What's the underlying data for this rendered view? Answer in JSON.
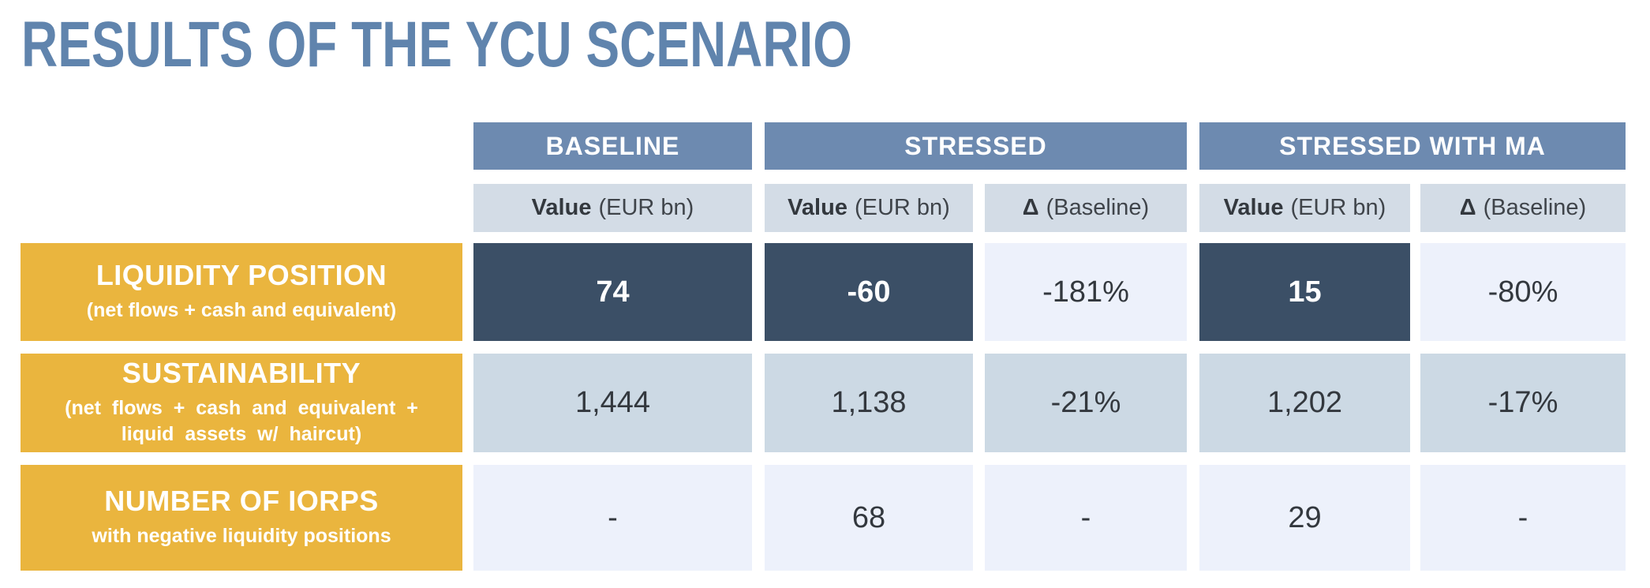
{
  "title": "RESULTS OF THE YCU SCENARIO",
  "colors": {
    "title-blue": "#6084ad",
    "group-blue": "#6d8ab0",
    "subheader-bg": "#d3dce6",
    "navy": "#3b4f66",
    "mid-blue": "#ccd9e4",
    "lavender": "#edf1fb",
    "gold": "#eab53e",
    "dark-text": "#33383e",
    "white": "#ffffff"
  },
  "table": {
    "groups": [
      {
        "label": "BASELINE"
      },
      {
        "label": "STRESSED"
      },
      {
        "label": "STRESSED WITH MA"
      }
    ],
    "subheaders": [
      {
        "strong": "Value",
        "rest": "(EUR bn)"
      },
      {
        "strong": "Value",
        "rest": "(EUR bn)"
      },
      {
        "strong": "Δ",
        "rest": "(Baseline)"
      },
      {
        "strong": "Value",
        "rest": "(EUR bn)"
      },
      {
        "strong": "Δ",
        "rest": "(Baseline)"
      }
    ],
    "rows": [
      {
        "label": "LIQUIDITY POSITION",
        "sublabel": "(net flows + cash and equivalent)",
        "cells": [
          "74",
          "-60",
          "-181%",
          "15",
          "-80%"
        ]
      },
      {
        "label": "SUSTAINABILITY",
        "sublabel": "(net flows + cash and equivalent + liquid assets w/ haircut)",
        "cells": [
          "1,444",
          "1,138",
          "-21%",
          "1,202",
          "-17%"
        ]
      },
      {
        "label": "NUMBER OF IORPS",
        "sublabel": "with negative liquidity positions",
        "cells": [
          "-",
          "68",
          "-",
          "29",
          "-"
        ]
      }
    ]
  },
  "chart_data": {
    "type": "table",
    "title": "RESULTS OF THE YCU SCENARIO",
    "column_groups": [
      "BASELINE",
      "STRESSED",
      "STRESSED WITH MA"
    ],
    "columns": [
      "Baseline Value (EUR bn)",
      "Stressed Value (EUR bn)",
      "Stressed Δ (Baseline)",
      "Stressed with MA Value (EUR bn)",
      "Stressed with MA Δ (Baseline)"
    ],
    "rows": [
      {
        "metric": "LIQUIDITY POSITION (net flows + cash and equivalent)",
        "baseline_value_eur_bn": 74,
        "stressed_value_eur_bn": -60,
        "stressed_delta_vs_baseline": "-181%",
        "stressed_with_ma_value_eur_bn": 15,
        "stressed_with_ma_delta_vs_baseline": "-80%"
      },
      {
        "metric": "SUSTAINABILITY (net flows + cash and equivalent + liquid assets w/ haircut)",
        "baseline_value_eur_bn": 1444,
        "stressed_value_eur_bn": 1138,
        "stressed_delta_vs_baseline": "-21%",
        "stressed_with_ma_value_eur_bn": 1202,
        "stressed_with_ma_delta_vs_baseline": "-17%"
      },
      {
        "metric": "NUMBER OF IORPS with negative liquidity positions",
        "baseline_value_eur_bn": "-",
        "stressed_value_eur_bn": 68,
        "stressed_delta_vs_baseline": "-",
        "stressed_with_ma_value_eur_bn": 29,
        "stressed_with_ma_delta_vs_baseline": "-"
      }
    ]
  }
}
